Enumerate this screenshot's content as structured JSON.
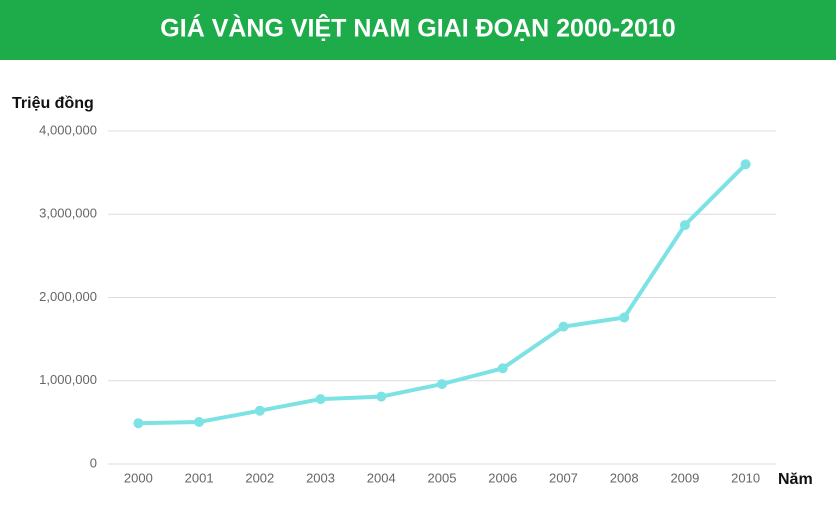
{
  "chart_data": {
    "type": "line",
    "title": "GIÁ VÀNG VIỆT NAM GIAI ĐOẠN 2000-2010",
    "y_label": "Triệu đồng",
    "x_label": "Năm",
    "categories": [
      "2000",
      "2001",
      "2002",
      "2003",
      "2004",
      "2005",
      "2006",
      "2007",
      "2008",
      "2009",
      "2010"
    ],
    "series": [
      {
        "color": "#7ce2e4",
        "values": [
          490000,
          505000,
          640000,
          780000,
          810000,
          960000,
          1150000,
          1650000,
          1760000,
          2870000,
          3600000
        ]
      }
    ],
    "ylim": [
      0,
      4000000
    ],
    "yticks": [
      0,
      {
        "value": 1000000,
        "label": "1,000,000"
      },
      {
        "value": 2000000,
        "label": "2,000,000"
      },
      {
        "value": 3000000,
        "label": "3,000,000"
      },
      {
        "value": 4000000,
        "label": "4,000,000"
      }
    ],
    "grid": true
  }
}
